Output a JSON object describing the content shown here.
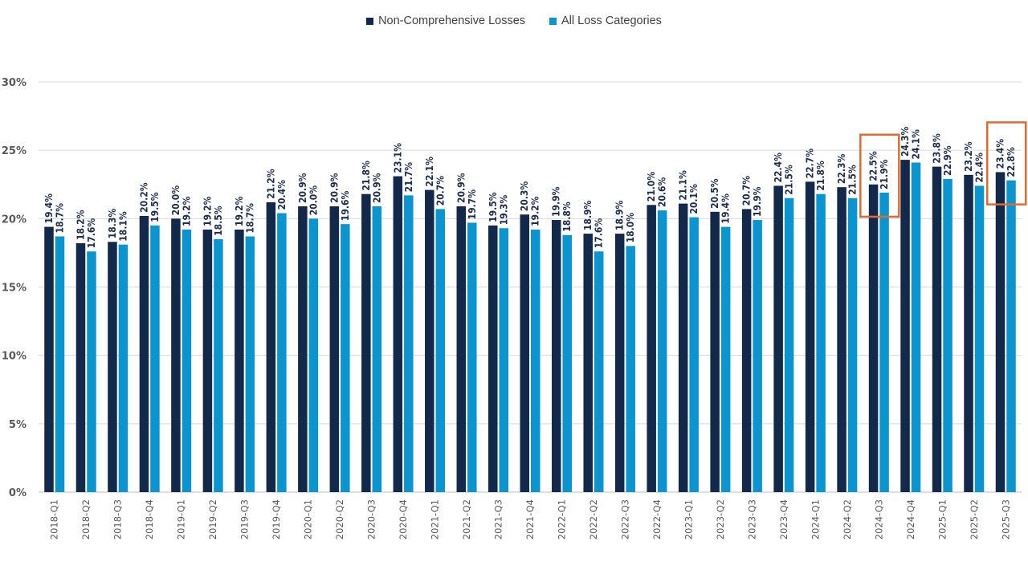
{
  "legend": {
    "items": [
      {
        "label": "Non-Comprehensive Losses",
        "color": "#13294b"
      },
      {
        "label": "All Loss Categories",
        "color": "#0a95d0"
      }
    ]
  },
  "chart_data": {
    "type": "bar",
    "title": "",
    "xlabel": "",
    "ylabel": "",
    "ylim": [
      0,
      30
    ],
    "yticks": [
      "0%",
      "5%",
      "10%",
      "15%",
      "20%",
      "25%",
      "30%"
    ],
    "grid": true,
    "legend_position": "top-center",
    "categories": [
      "2018-Q1",
      "2018-Q2",
      "2018-Q3",
      "2018-Q4",
      "2019-Q1",
      "2019-Q2",
      "2019-Q3",
      "2019-Q4",
      "2020-Q1",
      "2020-Q2",
      "2020-Q3",
      "2020-Q4",
      "2021-Q1",
      "2021-Q2",
      "2021-Q3",
      "2021-Q4",
      "2022-Q1",
      "2022-Q2",
      "2022-Q3",
      "2022-Q4",
      "2023-Q1",
      "2023-Q2",
      "2023-Q3",
      "2023-Q4",
      "2024-Q1",
      "2024-Q2",
      "2024-Q3",
      "2024-Q4",
      "2025-Q1",
      "2025-Q2",
      "2025-Q3"
    ],
    "series": [
      {
        "name": "Non-Comprehensive Losses",
        "color": "#13294b",
        "values": [
          19.4,
          18.2,
          18.3,
          20.2,
          20.0,
          19.2,
          19.2,
          21.2,
          20.9,
          20.9,
          21.8,
          23.1,
          22.1,
          20.9,
          19.5,
          20.3,
          19.9,
          18.9,
          18.9,
          21.0,
          21.1,
          20.5,
          20.7,
          22.4,
          22.7,
          22.3,
          22.5,
          24.3,
          23.8,
          23.2,
          23.4
        ],
        "labels": [
          "19.4%",
          "18.2%",
          "18.3%",
          "20.2%",
          "20.0%",
          "19.2%",
          "19.2%",
          "21.2%",
          "20.9%",
          "20.9%",
          "21.8%",
          "23.1%",
          "22.1%",
          "20.9%",
          "19.5%",
          "20.3%",
          "19.9%",
          "18.9%",
          "18.9%",
          "21.0%",
          "21.1%",
          "20.5%",
          "20.7%",
          "22.4%",
          "22.7%",
          "22.3%",
          "22.5%",
          "24.3%",
          "23.8%",
          "23.2%",
          "23.4%"
        ]
      },
      {
        "name": "All Loss Categories",
        "color": "#0a95d0",
        "values": [
          18.7,
          17.6,
          18.1,
          19.5,
          19.2,
          18.5,
          18.7,
          20.4,
          20.0,
          19.6,
          20.9,
          21.7,
          20.7,
          19.7,
          19.3,
          19.2,
          18.8,
          17.6,
          18.0,
          20.6,
          20.1,
          19.4,
          19.9,
          21.5,
          21.8,
          21.5,
          21.9,
          24.1,
          22.9,
          22.4,
          22.8
        ],
        "labels": [
          "18.7%",
          "17.6%",
          "18.1%",
          "19.5%",
          "19.2%",
          "18.5%",
          "18.7%",
          "20.4%",
          "20.0%",
          "19.6%",
          "20.9%",
          "21.7%",
          "20.7%",
          "19.7%",
          "19.3%",
          "19.2%",
          "18.8%",
          "17.6%",
          "18.0%",
          "20.6%",
          "20.1%",
          "19.4%",
          "19.9%",
          "21.5%",
          "21.8%",
          "21.5%",
          "21.9%",
          "24.1%",
          "22.9%",
          "22.4%",
          "22.8%"
        ]
      }
    ],
    "highlight_boxes": [
      {
        "category": "2024-Q3",
        "color": "#e26a2c"
      },
      {
        "category": "2025-Q3",
        "color": "#e26a2c"
      }
    ]
  }
}
